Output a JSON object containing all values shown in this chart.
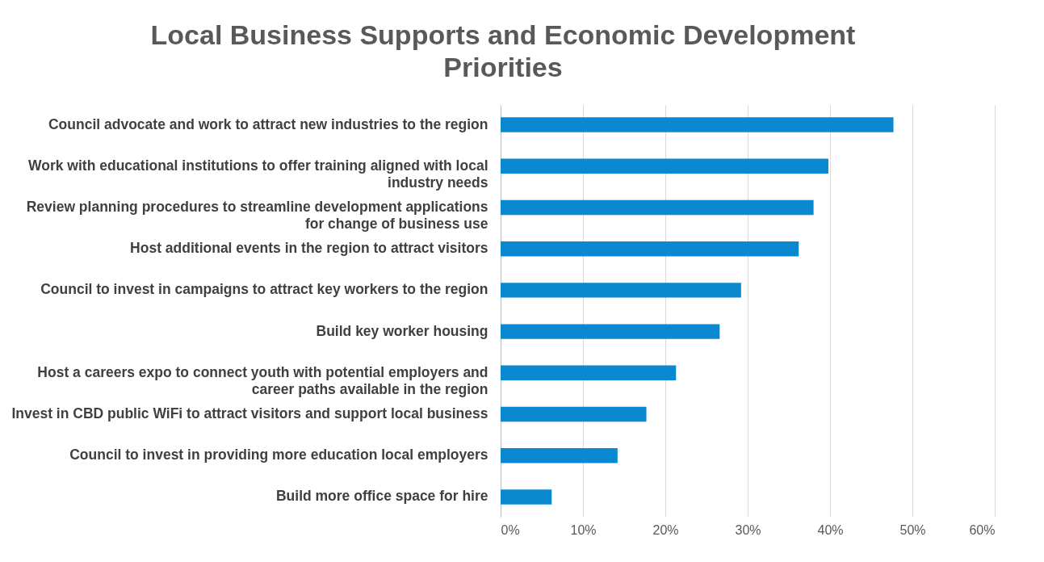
{
  "chart_data": {
    "type": "bar",
    "orientation": "horizontal",
    "title": "Local Business Supports and Economic Development Priorities",
    "categories": [
      "Council advocate and work to attract new industries to the region",
      "Work with educational institutions to offer training aligned with local industry needs",
      "Review planning procedures to streamline development applications for change of business use",
      "Host additional events in the region to attract visitors",
      "Council to invest in campaigns to attract key workers to the region",
      "Build key worker housing",
      "Host a careers expo to connect youth with potential employers and career paths available in the region",
      "Invest in CBD public WiFi to attract visitors and support local business",
      "Council to invest in providing more education local employers",
      "Build more office space for hire"
    ],
    "values": [
      47.7,
      39.8,
      38.0,
      36.2,
      29.2,
      26.6,
      21.3,
      17.7,
      14.2,
      6.2
    ],
    "color": "#0a88d0",
    "xlim": [
      0,
      60
    ],
    "xticks": [
      {
        "value": 0,
        "label": "0%"
      },
      {
        "value": 10,
        "label": "10%"
      },
      {
        "value": 20,
        "label": "20%"
      },
      {
        "value": 30,
        "label": "30%"
      },
      {
        "value": 40,
        "label": "40%"
      },
      {
        "value": 50,
        "label": "50%"
      },
      {
        "value": 60,
        "label": "60%"
      }
    ],
    "grid": "x"
  }
}
